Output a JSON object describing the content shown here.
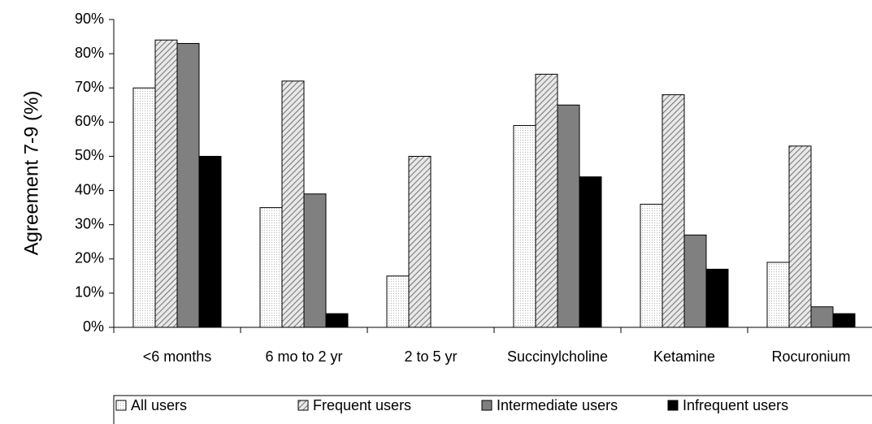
{
  "chart_data": {
    "type": "bar",
    "y_label": "Agreement 7-9 (%)",
    "categories": [
      "<6 months",
      "6 mo to 2 yr",
      "2 to 5 yr",
      "Succinylcholine",
      "Ketamine",
      "Rocuronium"
    ],
    "series": [
      {
        "name": "All users",
        "color": "#f2f2f2",
        "pattern": "dots",
        "values": [
          70,
          35,
          15,
          59,
          36,
          19
        ]
      },
      {
        "name": "Frequent users",
        "color": "#c8c8c8",
        "pattern": "hatch",
        "values": [
          84,
          72,
          50,
          74,
          68,
          53
        ]
      },
      {
        "name": "Intermediate users",
        "color": "#808080",
        "values": [
          83,
          39,
          0,
          65,
          27,
          6
        ]
      },
      {
        "name": "Infrequent users",
        "color": "#000000",
        "values": [
          50,
          4,
          0,
          44,
          17,
          4
        ]
      }
    ],
    "ylim": [
      0,
      90
    ],
    "yticks": [
      {
        "value": 0,
        "label": "0%"
      },
      {
        "value": 10,
        "label": "10%"
      },
      {
        "value": 20,
        "label": "20%"
      },
      {
        "value": 30,
        "label": "30%"
      },
      {
        "value": 40,
        "label": "40%"
      },
      {
        "value": 50,
        "label": "50%"
      },
      {
        "value": 60,
        "label": "60%"
      },
      {
        "value": 70,
        "label": "70%"
      },
      {
        "value": 80,
        "label": "80%"
      },
      {
        "value": 90,
        "label": "90%"
      }
    ],
    "legend": "bottom"
  }
}
